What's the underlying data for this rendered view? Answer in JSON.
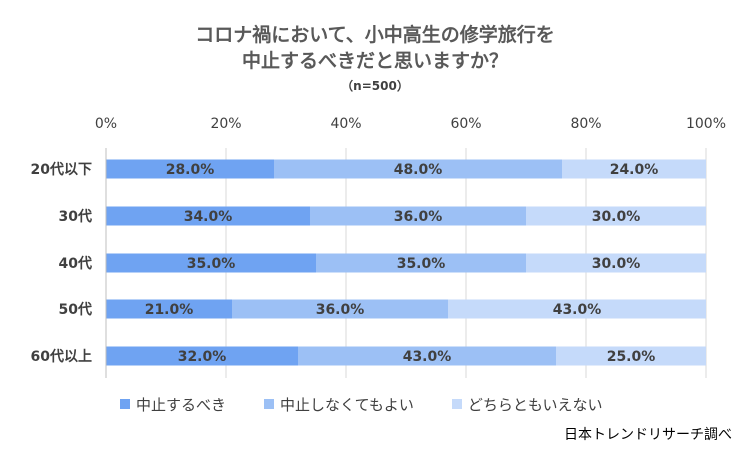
{
  "title_line1": "コロナ禍において、小中高生の修学旅行を",
  "title_line2": "中止するべきだと思いますか？",
  "subtitle": "（n=500）",
  "source": "日本トレンドリサーチ調べ",
  "colors": {
    "series1": "#6FA3F2",
    "series2": "#9CC0F5",
    "series3": "#C5DAFA",
    "grid": "#D9D9D9",
    "text": "#404040"
  },
  "chart_data": {
    "type": "bar",
    "orientation": "horizontal",
    "stacked": true,
    "categories": [
      "20代以下",
      "30代",
      "40代",
      "50代",
      "60代以上"
    ],
    "series": [
      {
        "name": "中止するべき",
        "values": [
          28.0,
          34.0,
          35.0,
          21.0,
          32.0
        ]
      },
      {
        "name": "中止しなくてもよい",
        "values": [
          48.0,
          36.0,
          35.0,
          36.0,
          43.0
        ]
      },
      {
        "name": "どちらともいえない",
        "values": [
          24.0,
          30.0,
          30.0,
          43.0,
          25.0
        ]
      }
    ],
    "xticks": [
      "0%",
      "20%",
      "40%",
      "60%",
      "80%",
      "100%"
    ],
    "xlim": [
      0,
      100
    ],
    "grid": true,
    "legend_position": "bottom"
  }
}
